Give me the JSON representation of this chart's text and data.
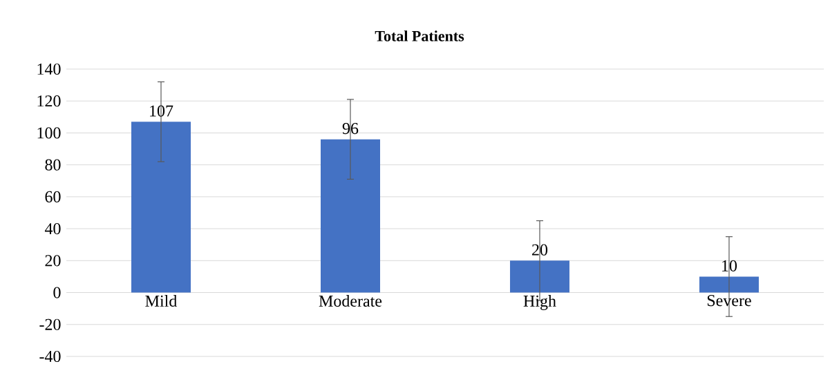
{
  "chart_data": {
    "type": "bar",
    "title": "Total Patients",
    "categories": [
      "Mild",
      "Moderate",
      "High",
      "Severe"
    ],
    "values": [
      107,
      96,
      20,
      10
    ],
    "errors": [
      25,
      25,
      25,
      25
    ],
    "color": "#4472c4",
    "ylim": [
      -40,
      140
    ],
    "yticks": [
      -40,
      -20,
      0,
      20,
      40,
      60,
      80,
      100,
      120,
      140
    ],
    "grid": "y",
    "data_labels": true
  }
}
